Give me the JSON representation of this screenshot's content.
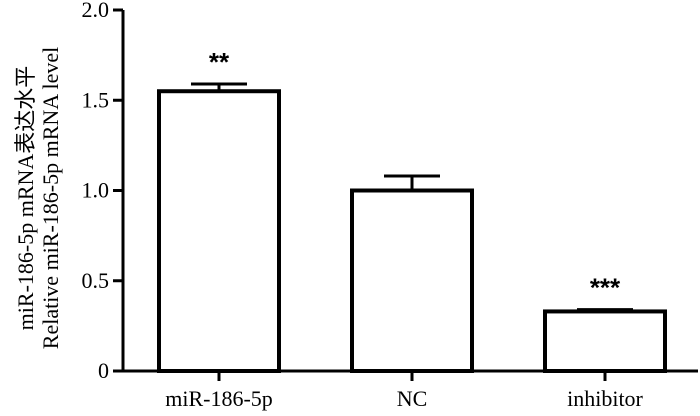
{
  "chart_data": {
    "type": "bar",
    "categories": [
      "miR-186-5p",
      "NC",
      "inhibitor"
    ],
    "values": [
      1.55,
      1.0,
      0.33
    ],
    "errors": [
      0.04,
      0.08,
      0.01
    ],
    "significance": [
      "**",
      "",
      "***"
    ],
    "ylabel_line1": "miR-186-5p mRNA表达水平",
    "ylabel_line2": "Relative miR-186-5p mRNA level",
    "ylim": [
      0,
      2.0
    ],
    "yticks": [
      "0",
      "0.5",
      "1.0",
      "1.5",
      "2.0"
    ],
    "ytick_values": [
      0,
      0.5,
      1.0,
      1.5,
      2.0
    ],
    "bar_fill": "#ffffff",
    "bar_stroke": "#000000",
    "grid": false
  }
}
